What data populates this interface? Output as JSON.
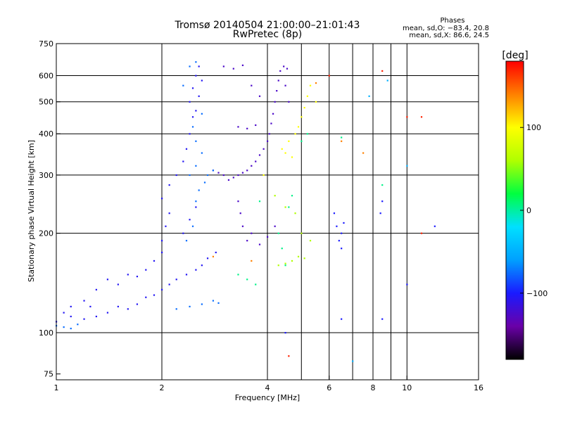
{
  "chart_data": {
    "type": "scatter",
    "title": "Tromsø 20140504 21:00:00–21:01:43",
    "subtitle": "RwPretec (8p)",
    "xlabel": "Frequency [MHz]",
    "ylabel": "Stationary phase Virtual Height [km]",
    "x_scale": "log",
    "y_scale": "log",
    "xlim": [
      1,
      16
    ],
    "ylim": [
      72,
      750
    ],
    "x_ticks": [
      1,
      2,
      4,
      6,
      8,
      10,
      16
    ],
    "x_tick_labels": [
      "1",
      "2",
      "4",
      "6",
      "8",
      "10",
      "16"
    ],
    "y_ticks": [
      75,
      100,
      200,
      300,
      400,
      500,
      600,
      750
    ],
    "y_tick_labels": [
      "75",
      "100",
      "200",
      "300",
      "400",
      "500",
      "600",
      "750"
    ],
    "x_gridlines": [
      2,
      4,
      5,
      6,
      7,
      8,
      9,
      10
    ],
    "y_gridlines": [
      100,
      200,
      300,
      400,
      500,
      600
    ],
    "grid": true,
    "stats": {
      "heading": "Phases",
      "line1": "mean, sd,O: −83.4, 20.8",
      "line2": "mean, sd,X:  86.6, 24.5"
    },
    "colorbar": {
      "label": "[deg]",
      "range": [
        -180,
        180
      ],
      "ticks": [
        100,
        0,
        -100
      ],
      "tick_labels": [
        "100",
        "0",
        "−100"
      ],
      "colors": [
        "#000000",
        "#6a00a8",
        "#1a1aff",
        "#00a0ff",
        "#00e0ff",
        "#00ff40",
        "#b0ff00",
        "#ffff00",
        "#ff8000",
        "#ff0000"
      ]
    },
    "series": [
      {
        "phase_deg": -105,
        "points": [
          {
            "x": 1.0,
            "y": 108
          },
          {
            "x": 1.05,
            "y": 115
          },
          {
            "x": 1.1,
            "y": 112
          },
          {
            "x": 1.2,
            "y": 110
          },
          {
            "x": 1.25,
            "y": 120
          },
          {
            "x": 1.3,
            "y": 112
          },
          {
            "x": 1.4,
            "y": 115
          },
          {
            "x": 1.5,
            "y": 120
          },
          {
            "x": 1.6,
            "y": 118
          },
          {
            "x": 1.7,
            "y": 122
          },
          {
            "x": 1.8,
            "y": 128
          },
          {
            "x": 1.9,
            "y": 130
          },
          {
            "x": 2.0,
            "y": 135
          },
          {
            "x": 2.1,
            "y": 140
          },
          {
            "x": 2.2,
            "y": 145
          },
          {
            "x": 2.35,
            "y": 150
          },
          {
            "x": 2.5,
            "y": 155
          },
          {
            "x": 2.6,
            "y": 160
          },
          {
            "x": 2.7,
            "y": 168
          },
          {
            "x": 2.85,
            "y": 175
          },
          {
            "x": 1.5,
            "y": 140
          },
          {
            "x": 1.6,
            "y": 150
          },
          {
            "x": 1.7,
            "y": 148
          },
          {
            "x": 1.8,
            "y": 155
          },
          {
            "x": 1.9,
            "y": 165
          },
          {
            "x": 2.0,
            "y": 175
          },
          {
            "x": 2.0,
            "y": 190
          },
          {
            "x": 2.05,
            "y": 210
          },
          {
            "x": 2.1,
            "y": 230
          },
          {
            "x": 2.0,
            "y": 255
          },
          {
            "x": 2.1,
            "y": 280
          },
          {
            "x": 2.2,
            "y": 300
          },
          {
            "x": 2.3,
            "y": 330
          },
          {
            "x": 2.35,
            "y": 360
          },
          {
            "x": 2.4,
            "y": 400
          },
          {
            "x": 2.45,
            "y": 450
          },
          {
            "x": 2.4,
            "y": 500
          },
          {
            "x": 2.45,
            "y": 550
          },
          {
            "x": 2.5,
            "y": 600
          },
          {
            "x": 2.55,
            "y": 640
          },
          {
            "x": 2.3,
            "y": 200
          },
          {
            "x": 2.4,
            "y": 220
          },
          {
            "x": 2.5,
            "y": 240
          },
          {
            "x": 1.4,
            "y": 145
          },
          {
            "x": 1.3,
            "y": 135
          },
          {
            "x": 1.2,
            "y": 125
          },
          {
            "x": 1.1,
            "y": 120
          },
          {
            "x": 2.6,
            "y": 580
          },
          {
            "x": 2.55,
            "y": 520
          },
          {
            "x": 2.5,
            "y": 470
          }
        ]
      },
      {
        "phase_deg": -125,
        "points": [
          {
            "x": 3.0,
            "y": 300
          },
          {
            "x": 3.1,
            "y": 290
          },
          {
            "x": 3.2,
            "y": 295
          },
          {
            "x": 3.3,
            "y": 300
          },
          {
            "x": 3.4,
            "y": 305
          },
          {
            "x": 3.5,
            "y": 310
          },
          {
            "x": 3.6,
            "y": 320
          },
          {
            "x": 3.7,
            "y": 330
          },
          {
            "x": 3.8,
            "y": 345
          },
          {
            "x": 3.9,
            "y": 360
          },
          {
            "x": 4.0,
            "y": 380
          },
          {
            "x": 4.05,
            "y": 400
          },
          {
            "x": 4.1,
            "y": 430
          },
          {
            "x": 4.15,
            "y": 460
          },
          {
            "x": 4.2,
            "y": 500
          },
          {
            "x": 4.25,
            "y": 540
          },
          {
            "x": 4.3,
            "y": 580
          },
          {
            "x": 4.35,
            "y": 620
          },
          {
            "x": 4.45,
            "y": 640
          },
          {
            "x": 4.55,
            "y": 630
          },
          {
            "x": 2.8,
            "y": 310
          },
          {
            "x": 2.9,
            "y": 305
          },
          {
            "x": 3.3,
            "y": 250
          },
          {
            "x": 3.35,
            "y": 230
          },
          {
            "x": 3.4,
            "y": 210
          },
          {
            "x": 3.5,
            "y": 190
          },
          {
            "x": 3.6,
            "y": 200
          },
          {
            "x": 3.8,
            "y": 185
          },
          {
            "x": 4.0,
            "y": 195
          },
          {
            "x": 4.2,
            "y": 210
          },
          {
            "x": 3.3,
            "y": 420
          },
          {
            "x": 3.5,
            "y": 415
          },
          {
            "x": 3.7,
            "y": 425
          },
          {
            "x": 4.5,
            "y": 560
          },
          {
            "x": 4.6,
            "y": 500
          },
          {
            "x": 3.0,
            "y": 640
          },
          {
            "x": 3.2,
            "y": 630
          },
          {
            "x": 3.4,
            "y": 645
          },
          {
            "x": 3.6,
            "y": 560
          },
          {
            "x": 3.8,
            "y": 520
          }
        ]
      },
      {
        "phase_deg": -75,
        "points": [
          {
            "x": 1.0,
            "y": 105
          },
          {
            "x": 1.05,
            "y": 104
          },
          {
            "x": 1.1,
            "y": 103
          },
          {
            "x": 1.15,
            "y": 106
          },
          {
            "x": 2.2,
            "y": 118
          },
          {
            "x": 2.4,
            "y": 120
          },
          {
            "x": 2.6,
            "y": 122
          },
          {
            "x": 2.8,
            "y": 125
          },
          {
            "x": 2.9,
            "y": 123
          },
          {
            "x": 2.4,
            "y": 300
          },
          {
            "x": 2.5,
            "y": 320
          },
          {
            "x": 2.6,
            "y": 350
          },
          {
            "x": 2.5,
            "y": 380
          },
          {
            "x": 2.45,
            "y": 420
          },
          {
            "x": 2.6,
            "y": 460
          },
          {
            "x": 2.7,
            "y": 300
          },
          {
            "x": 2.8,
            "y": 310
          },
          {
            "x": 2.5,
            "y": 250
          },
          {
            "x": 2.45,
            "y": 210
          },
          {
            "x": 2.35,
            "y": 190
          },
          {
            "x": 2.55,
            "y": 270
          },
          {
            "x": 2.65,
            "y": 285
          },
          {
            "x": 2.4,
            "y": 640
          },
          {
            "x": 2.5,
            "y": 660
          },
          {
            "x": 2.3,
            "y": 560
          }
        ]
      },
      {
        "phase_deg": 5,
        "points": [
          {
            "x": 3.3,
            "y": 150
          },
          {
            "x": 3.5,
            "y": 145
          },
          {
            "x": 3.7,
            "y": 140
          },
          {
            "x": 4.3,
            "y": 200
          },
          {
            "x": 4.4,
            "y": 180
          },
          {
            "x": 4.5,
            "y": 160
          },
          {
            "x": 4.6,
            "y": 240
          },
          {
            "x": 4.7,
            "y": 260
          },
          {
            "x": 5.0,
            "y": 380
          },
          {
            "x": 5.2,
            "y": 400
          },
          {
            "x": 6.5,
            "y": 390
          },
          {
            "x": 8.5,
            "y": 280
          },
          {
            "x": 3.8,
            "y": 250
          }
        ]
      },
      {
        "phase_deg": 60,
        "points": [
          {
            "x": 4.3,
            "y": 160
          },
          {
            "x": 4.5,
            "y": 162
          },
          {
            "x": 4.7,
            "y": 165
          },
          {
            "x": 4.9,
            "y": 170
          },
          {
            "x": 5.1,
            "y": 168
          },
          {
            "x": 4.5,
            "y": 240
          },
          {
            "x": 4.8,
            "y": 230
          },
          {
            "x": 5.0,
            "y": 200
          },
          {
            "x": 5.3,
            "y": 190
          },
          {
            "x": 4.2,
            "y": 260
          }
        ]
      },
      {
        "phase_deg": 100,
        "points": [
          {
            "x": 4.4,
            "y": 360
          },
          {
            "x": 4.6,
            "y": 380
          },
          {
            "x": 4.8,
            "y": 400
          },
          {
            "x": 4.9,
            "y": 420
          },
          {
            "x": 5.0,
            "y": 450
          },
          {
            "x": 5.1,
            "y": 480
          },
          {
            "x": 5.2,
            "y": 520
          },
          {
            "x": 5.3,
            "y": 560
          },
          {
            "x": 4.7,
            "y": 340
          },
          {
            "x": 4.5,
            "y": 350
          },
          {
            "x": 3.9,
            "y": 300
          },
          {
            "x": 5.5,
            "y": 500
          }
        ]
      },
      {
        "phase_deg": 140,
        "points": [
          {
            "x": 3.6,
            "y": 165
          },
          {
            "x": 5.5,
            "y": 570
          },
          {
            "x": 6.5,
            "y": 380
          },
          {
            "x": 7.5,
            "y": 350
          },
          {
            "x": 2.8,
            "y": 170
          }
        ]
      },
      {
        "phase_deg": 170,
        "points": [
          {
            "x": 10.0,
            "y": 450
          },
          {
            "x": 11.0,
            "y": 450
          },
          {
            "x": 8.5,
            "y": 620
          },
          {
            "x": 4.6,
            "y": 85
          },
          {
            "x": 6.0,
            "y": 600
          },
          {
            "x": 11.0,
            "y": 200
          }
        ]
      },
      {
        "phase_deg": -50,
        "points": [
          {
            "x": 7.0,
            "y": 82
          },
          {
            "x": 10.0,
            "y": 320
          },
          {
            "x": 7.8,
            "y": 520
          },
          {
            "x": 8.8,
            "y": 580
          }
        ]
      },
      {
        "phase_deg": -100,
        "points": [
          {
            "x": 6.2,
            "y": 230
          },
          {
            "x": 6.3,
            "y": 210
          },
          {
            "x": 6.4,
            "y": 190
          },
          {
            "x": 6.5,
            "y": 200
          },
          {
            "x": 6.6,
            "y": 215
          },
          {
            "x": 6.5,
            "y": 180
          },
          {
            "x": 8.5,
            "y": 250
          },
          {
            "x": 8.4,
            "y": 230
          },
          {
            "x": 10.0,
            "y": 140
          },
          {
            "x": 12.0,
            "y": 210
          },
          {
            "x": 4.5,
            "y": 100
          },
          {
            "x": 6.5,
            "y": 110
          },
          {
            "x": 8.5,
            "y": 110
          }
        ]
      }
    ]
  }
}
